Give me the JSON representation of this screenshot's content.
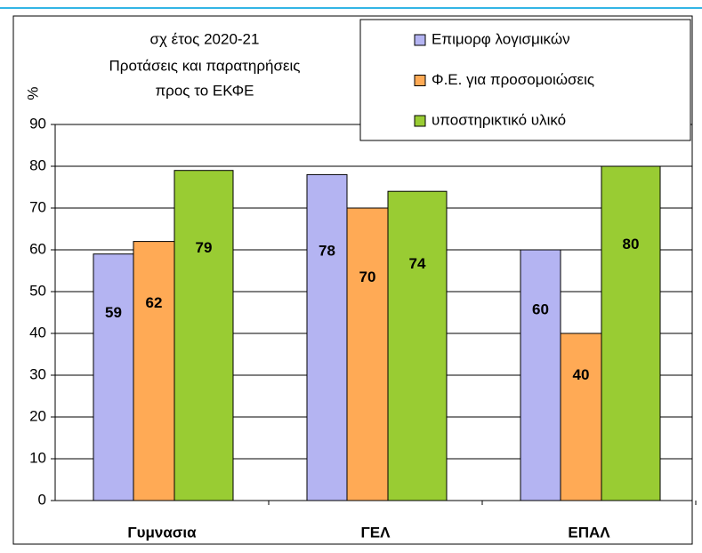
{
  "chart_data": {
    "type": "bar",
    "title": [
      "σχ έτος 2020-21",
      "Προτάσεις και παρατηρήσεις",
      "προς το ΕΚΦΕ"
    ],
    "y_label": "%",
    "categories": [
      "Γυμνασια",
      "ΓΕΛ",
      "ΕΠΑΛ"
    ],
    "series": [
      {
        "name": "Επιμορφ λογισμικών",
        "color": "#b4b4f2",
        "values": [
          59,
          78,
          60
        ]
      },
      {
        "name": "Φ.Ε. για προσομοιώσεις",
        "color": "#ffaa55",
        "values": [
          62,
          70,
          40
        ]
      },
      {
        "name": "υποστηρικτικό υλικό",
        "color": "#99cc33",
        "values": [
          79,
          74,
          80
        ]
      }
    ],
    "ylim": [
      0,
      90
    ],
    "yticks": [
      0,
      10,
      20,
      30,
      40,
      50,
      60,
      70,
      80,
      90
    ],
    "grid": true,
    "legend": "upper right"
  }
}
